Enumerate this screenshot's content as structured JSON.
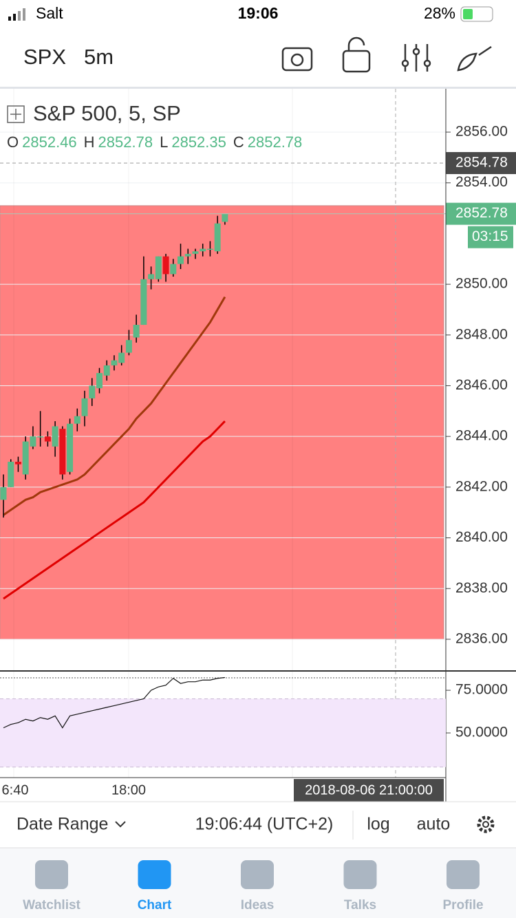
{
  "status_bar": {
    "carrier": "Salt",
    "time": "19:06",
    "battery": "28%"
  },
  "header": {
    "symbol": "SPX",
    "interval": "5m"
  },
  "chart_data": {
    "type": "candlestick",
    "title": "S&P 500, 5, SP",
    "ohlc": [
      {
        "label": "O",
        "value": 2852.46
      },
      {
        "label": "H",
        "value": 2852.78
      },
      {
        "label": "L",
        "value": 2852.35
      },
      {
        "label": "C",
        "value": 2852.78
      }
    ],
    "open": [
      2841.5,
      2842,
      2843,
      2842.5,
      2843.6,
      2844,
      2844,
      2843.6,
      2844.3,
      2842.6,
      2844.5,
      2844.8,
      2845.5,
      2845.9,
      2846.4,
      2846.8,
      2846.9,
      2847.3,
      2847.9,
      2848.4,
      2850.2,
      2850.2,
      2851.1,
      2850.4,
      2850.8,
      2851.1,
      2851.2,
      2851.3,
      2851.4,
      2851.3,
      2852.46
    ],
    "high": [
      2842.5,
      2843.1,
      2843.2,
      2844,
      2844.4,
      2845,
      2844.2,
      2844.6,
      2844.4,
      2844.7,
      2845.1,
      2845.8,
      2846.3,
      2846.7,
      2847,
      2847.2,
      2847.6,
      2848.2,
      2848.8,
      2851.1,
      2850.7,
      2851.1,
      2851.2,
      2851,
      2851.6,
      2851.4,
      2851.4,
      2851.6,
      2851.7,
      2852.7,
      2852.78
    ],
    "low": [
      2840.8,
      2842,
      2842.6,
      2842.3,
      2843.5,
      2843.6,
      2843.6,
      2843.2,
      2842.3,
      2842.5,
      2844.2,
      2844.4,
      2845.2,
      2845.7,
      2846.2,
      2846.6,
      2846.8,
      2847.2,
      2847.7,
      2848.4,
      2849.8,
      2850.1,
      2850.1,
      2850.3,
      2850.6,
      2850.8,
      2851,
      2851.1,
      2851.1,
      2851.2,
      2852.35
    ],
    "close": [
      2842,
      2843,
      2842.9,
      2843.8,
      2844,
      2844,
      2843.8,
      2844.4,
      2842.5,
      2844.5,
      2844.8,
      2845.5,
      2846,
      2846.5,
      2846.8,
      2847,
      2847.3,
      2847.8,
      2848.4,
      2850.2,
      2850.4,
      2851.1,
      2850.4,
      2850.8,
      2851.1,
      2851.2,
      2851.3,
      2851.4,
      2851.4,
      2852.4,
      2852.78
    ],
    "up_color": "#5cb887",
    "down_color": "#e8121b",
    "ma_red": [
      2837.6,
      2837.8,
      2838.0,
      2838.2,
      2838.4,
      2838.6,
      2838.8,
      2839.0,
      2839.2,
      2839.4,
      2839.6,
      2839.8,
      2840.0,
      2840.2,
      2840.4,
      2840.6,
      2840.8,
      2841.0,
      2841.2,
      2841.4,
      2841.7,
      2842.0,
      2842.3,
      2842.6,
      2842.9,
      2843.2,
      2843.5,
      2843.8,
      2844.0,
      2844.3,
      2844.6
    ],
    "ma_brown": [
      2840.9,
      2841.1,
      2841.3,
      2841.5,
      2841.6,
      2841.8,
      2841.9,
      2842.0,
      2842.1,
      2842.2,
      2842.3,
      2842.5,
      2842.8,
      2843.1,
      2843.4,
      2843.7,
      2844.0,
      2844.3,
      2844.7,
      2845.0,
      2845.3,
      2845.7,
      2846.1,
      2846.5,
      2846.9,
      2847.3,
      2847.7,
      2848.1,
      2848.5,
      2849.0,
      2849.5
    ],
    "zone": [
      2836,
      2853.1
    ],
    "ylim": [
      2834.75,
      2857.71
    ],
    "yticks": [
      {
        "value": 2836,
        "label": "2836.00"
      },
      {
        "value": 2838,
        "label": "2838.00"
      },
      {
        "value": 2840,
        "label": "2840.00"
      },
      {
        "value": 2842,
        "label": "2842.00"
      },
      {
        "value": 2844,
        "label": "2844.00"
      },
      {
        "value": 2846,
        "label": "2846.00"
      },
      {
        "value": 2848,
        "label": "2848.00"
      },
      {
        "value": 2850,
        "label": "2850.00"
      },
      {
        "value": 2854,
        "label": "2854.00"
      },
      {
        "value": 2856,
        "label": "2856.00"
      }
    ],
    "last_price": {
      "value": 2852.78,
      "label": "2852.78"
    },
    "countdown": "03:15",
    "crosshair_price": {
      "value": 2854.78,
      "label": "2854.78"
    },
    "x_labels": [
      "6:40",
      "18:00"
    ],
    "crosshair_time": "2018-08-06 21:00:00",
    "rsi": {
      "values": [
        53,
        55,
        56,
        58,
        57,
        59,
        58,
        60,
        53,
        60,
        61,
        62,
        63,
        64,
        65,
        66,
        67,
        68,
        69,
        70,
        75,
        77,
        78,
        82,
        79,
        80,
        80,
        81,
        81,
        82,
        82.5
      ],
      "band": [
        30,
        70
      ],
      "ylim": [
        23.8,
        82.3
      ],
      "yticks": [
        {
          "value": 75,
          "label": "75.0000"
        },
        {
          "value": 50,
          "label": "50.0000"
        }
      ]
    }
  },
  "toolbar": {
    "date_range": "Date Range",
    "clock": "19:06:44 (UTC+2)",
    "log": "log",
    "auto": "auto"
  },
  "tabs": [
    "Watchlist",
    "Chart",
    "Ideas",
    "Talks",
    "Profile"
  ]
}
